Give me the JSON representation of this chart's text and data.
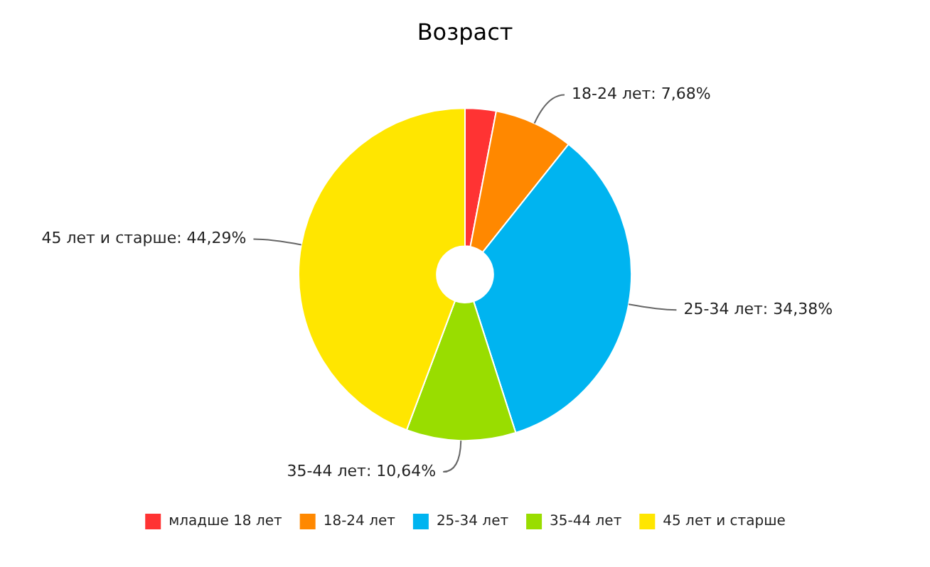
{
  "chart_data": {
    "type": "donut",
    "title": "Возраст",
    "categories": [
      "младше 18 лет",
      "18-24 лет",
      "25-34 лет",
      "35-44 лет",
      "45 лет и старше"
    ],
    "values": [
      3.01,
      7.68,
      34.38,
      10.64,
      44.29
    ],
    "colors": [
      "#ff3333",
      "#ff8800",
      "#00b4f0",
      "#99dd00",
      "#ffe600"
    ],
    "value_labels": [
      null,
      "18-24 лет: 7,68%",
      "25-34 лет: 34,38%",
      "35-44 лет: 10,64%",
      "45 лет и старше: 44,29%"
    ],
    "legend": "bottom"
  }
}
